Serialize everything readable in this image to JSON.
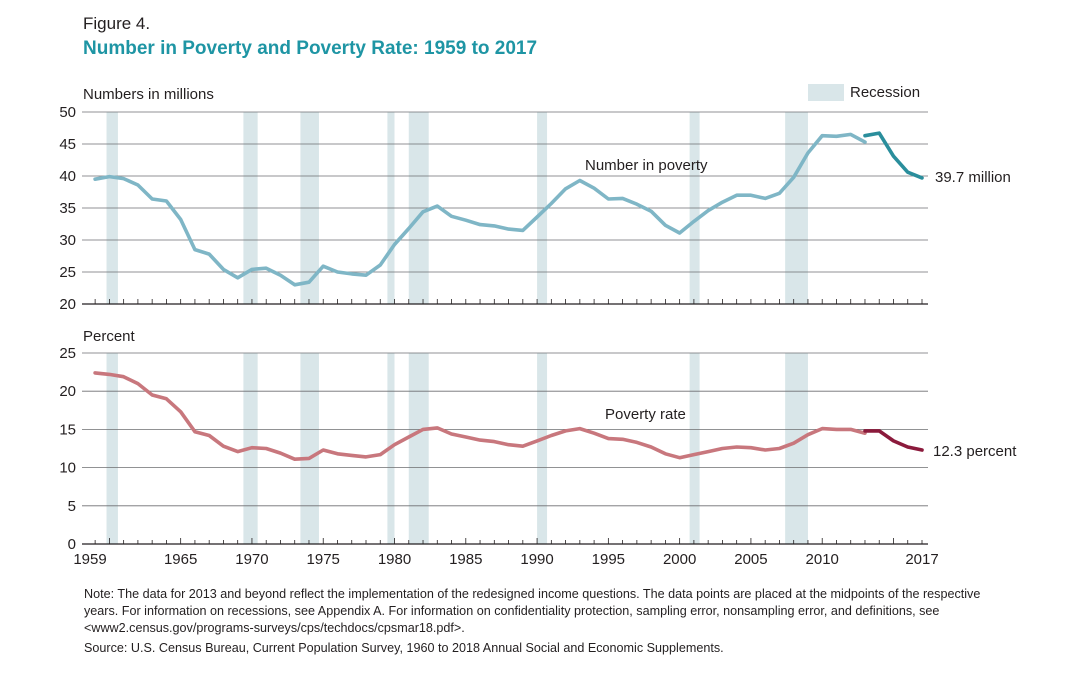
{
  "figure_label": "Figure 4.",
  "title": "Number in Poverty and Poverty Rate: 1959 to 2017",
  "note": "Note: The data for 2013 and beyond reflect the implementation of the redesigned income questions. The data points are placed at the midpoints of the respective years. For information on recessions, see Appendix A. For information on confidentiality protection, sampling error, nonsampling error, and definitions, see <www2.census.gov/programs-surveys/cps/techdocs/cpsmar18.pdf>.",
  "source": "Source: U.S. Census Bureau, Current Population Survey, 1960 to 2018 Annual Social and Economic Supplements.",
  "colors": {
    "number_line": "#7fb6c6",
    "number_line_new": "#2a8e9c",
    "rate_line": "#c8777d",
    "rate_line_new": "#8b1a3c",
    "recession": "#d9e6e9",
    "title": "#1e95a4"
  },
  "chart_data": [
    {
      "type": "line",
      "ylabel": "Numbers in millions",
      "ylim": [
        20,
        50
      ],
      "yticks": [
        20,
        25,
        30,
        35,
        40,
        45,
        50
      ],
      "legend": {
        "label": "Recession",
        "placement": "top-right"
      },
      "series_label": "Number in poverty",
      "end_label": "39.7 million",
      "recessions": [
        [
          1960.3,
          1961.1
        ],
        [
          1969.9,
          1970.9
        ],
        [
          1973.9,
          1975.2
        ],
        [
          1980.0,
          1980.5
        ],
        [
          1981.5,
          1982.9
        ],
        [
          1990.5,
          1991.2
        ],
        [
          2001.2,
          2001.9
        ],
        [
          2007.9,
          2009.5
        ]
      ],
      "series": [
        {
          "x": [
            1959,
            1960,
            1961,
            1962,
            1963,
            1964,
            1965,
            1966,
            1967,
            1968,
            1969,
            1970,
            1971,
            1972,
            1973,
            1974,
            1975,
            1976,
            1977,
            1978,
            1979,
            1980,
            1981,
            1982,
            1983,
            1984,
            1985,
            1986,
            1987,
            1988,
            1989,
            1990,
            1991,
            1992,
            1993,
            1994,
            1995,
            1996,
            1997,
            1998,
            1999,
            2000,
            2001,
            2002,
            2003,
            2004,
            2005,
            2006,
            2007,
            2008,
            2009,
            2010,
            2011,
            2012,
            2013
          ],
          "values": [
            39.5,
            39.9,
            39.6,
            38.6,
            36.4,
            36.1,
            33.2,
            28.5,
            27.8,
            25.4,
            24.1,
            25.4,
            25.6,
            24.5,
            23.0,
            23.4,
            25.9,
            25.0,
            24.7,
            24.5,
            26.1,
            29.3,
            31.8,
            34.4,
            35.3,
            33.7,
            33.1,
            32.4,
            32.2,
            31.7,
            31.5,
            33.6,
            35.7,
            38.0,
            39.3,
            38.1,
            36.4,
            36.5,
            35.6,
            34.5,
            32.3,
            31.1,
            32.9,
            34.6,
            35.9,
            37.0,
            37.0,
            36.5,
            37.3,
            39.8,
            43.6,
            46.3,
            46.2,
            46.5,
            45.3
          ]
        },
        {
          "x": [
            2013,
            2014,
            2015,
            2016,
            2017
          ],
          "values": [
            46.3,
            46.7,
            43.1,
            40.6,
            39.7
          ]
        }
      ]
    },
    {
      "type": "line",
      "ylabel": "Percent",
      "ylim": [
        0,
        25
      ],
      "yticks": [
        0,
        5,
        10,
        15,
        20,
        25
      ],
      "xticks": [
        1959,
        1965,
        1970,
        1975,
        1980,
        1985,
        1990,
        1995,
        2000,
        2005,
        2010,
        2017
      ],
      "series_label": "Poverty rate",
      "end_label": "12.3 percent",
      "recessions": [
        [
          1960.3,
          1961.1
        ],
        [
          1969.9,
          1970.9
        ],
        [
          1973.9,
          1975.2
        ],
        [
          1980.0,
          1980.5
        ],
        [
          1981.5,
          1982.9
        ],
        [
          1990.5,
          1991.2
        ],
        [
          2001.2,
          2001.9
        ],
        [
          2007.9,
          2009.5
        ]
      ],
      "series": [
        {
          "x": [
            1959,
            1960,
            1961,
            1962,
            1963,
            1964,
            1965,
            1966,
            1967,
            1968,
            1969,
            1970,
            1971,
            1972,
            1973,
            1974,
            1975,
            1976,
            1977,
            1978,
            1979,
            1980,
            1981,
            1982,
            1983,
            1984,
            1985,
            1986,
            1987,
            1988,
            1989,
            1990,
            1991,
            1992,
            1993,
            1994,
            1995,
            1996,
            1997,
            1998,
            1999,
            2000,
            2001,
            2002,
            2003,
            2004,
            2005,
            2006,
            2007,
            2008,
            2009,
            2010,
            2011,
            2012,
            2013
          ],
          "values": [
            22.4,
            22.2,
            21.9,
            21.0,
            19.5,
            19.0,
            17.3,
            14.7,
            14.2,
            12.8,
            12.1,
            12.6,
            12.5,
            11.9,
            11.1,
            11.2,
            12.3,
            11.8,
            11.6,
            11.4,
            11.7,
            13.0,
            14.0,
            15.0,
            15.2,
            14.4,
            14.0,
            13.6,
            13.4,
            13.0,
            12.8,
            13.5,
            14.2,
            14.8,
            15.1,
            14.5,
            13.8,
            13.7,
            13.3,
            12.7,
            11.8,
            11.3,
            11.7,
            12.1,
            12.5,
            12.7,
            12.6,
            12.3,
            12.5,
            13.2,
            14.3,
            15.1,
            15.0,
            15.0,
            14.5
          ]
        },
        {
          "x": [
            2013,
            2014,
            2015,
            2016,
            2017
          ],
          "values": [
            14.8,
            14.8,
            13.5,
            12.7,
            12.3
          ]
        }
      ]
    }
  ]
}
